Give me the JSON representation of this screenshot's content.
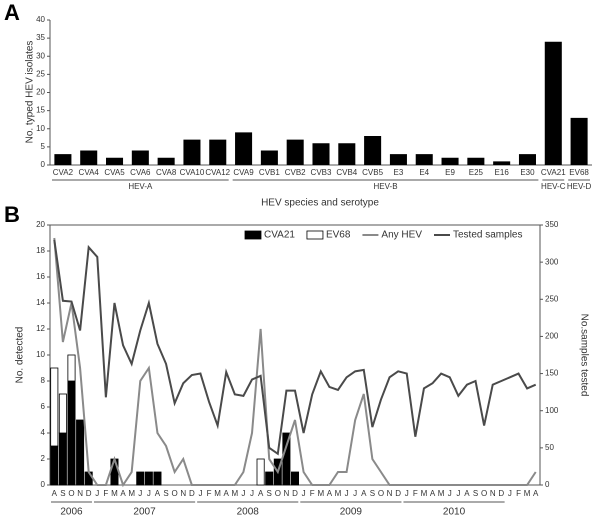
{
  "chart_data": [
    {
      "type": "bar",
      "panel_label": "A",
      "ylabel": "No. typed HEV isolates",
      "xlabel": "HEV species and serotype",
      "categories": [
        "CVA2",
        "CVA4",
        "CVA5",
        "CVA6",
        "CVA8",
        "CVA10",
        "CVA12",
        "CVA9",
        "CVB1",
        "CVB2",
        "CVB3",
        "CVB4",
        "CVB5",
        "E3",
        "E4",
        "E9",
        "E25",
        "E16",
        "E30",
        "CVA21",
        "EV68"
      ],
      "groups": [
        "HEV-A",
        "HEV-A",
        "HEV-A",
        "HEV-A",
        "HEV-A",
        "HEV-A",
        "HEV-A",
        "HEV-B",
        "HEV-B",
        "HEV-B",
        "HEV-B",
        "HEV-B",
        "HEV-B",
        "HEV-B",
        "HEV-B",
        "HEV-B",
        "HEV-B",
        "HEV-B",
        "HEV-B",
        "HEV-C",
        "HEV-D"
      ],
      "values": [
        3,
        4,
        2,
        4,
        2,
        7,
        7,
        9,
        4,
        7,
        6,
        6,
        8,
        3,
        3,
        2,
        2,
        1,
        3,
        34,
        13
      ],
      "color": "#000000",
      "ylim": [
        0,
        40
      ],
      "yticks": [
        0,
        5,
        10,
        15,
        20,
        25,
        30,
        35,
        40
      ]
    },
    {
      "type": "bar_line",
      "panel_label": "B",
      "ylabel": "No. detected",
      "y2label": "No.samples tested",
      "legend": "top-right",
      "stacked": true,
      "categories": [
        "A",
        "S",
        "O",
        "N",
        "D",
        "J",
        "F",
        "M",
        "A",
        "M",
        "J",
        "J",
        "A",
        "S",
        "O",
        "N",
        "D",
        "J",
        "F",
        "M",
        "A",
        "M",
        "J",
        "J",
        "A",
        "S",
        "O",
        "N",
        "D",
        "J",
        "F",
        "M",
        "A",
        "M",
        "J",
        "J",
        "A",
        "S",
        "O",
        "N",
        "D",
        "J",
        "F",
        "M",
        "A",
        "M",
        "J",
        "J",
        "A",
        "S",
        "O",
        "N",
        "D",
        "J",
        "F",
        "M",
        "A"
      ],
      "years": [
        "2006",
        "2006",
        "2006",
        "2006",
        "2006",
        "2007",
        "2007",
        "2007",
        "2007",
        "2007",
        "2007",
        "2007",
        "2007",
        "2007",
        "2007",
        "2007",
        "2007",
        "2008",
        "2008",
        "2008",
        "2008",
        "2008",
        "2008",
        "2008",
        "2008",
        "2008",
        "2008",
        "2008",
        "2008",
        "2009",
        "2009",
        "2009",
        "2009",
        "2009",
        "2009",
        "2009",
        "2009",
        "2009",
        "2009",
        "2009",
        "2009",
        "2010",
        "2010",
        "2010",
        "2010",
        "2010",
        "2010",
        "2010",
        "2010",
        "2010",
        "2010",
        "2010",
        "2010",
        null,
        null,
        null,
        null
      ],
      "series": [
        {
          "name": "CVA21",
          "kind": "bar",
          "color": "#000000",
          "values": [
            3,
            4,
            8,
            5,
            1,
            0,
            0,
            2,
            0,
            0,
            1,
            1,
            1,
            0,
            0,
            0,
            0,
            0,
            0,
            0,
            0,
            0,
            0,
            0,
            0,
            1,
            2,
            4,
            1,
            0,
            0,
            0,
            0,
            0,
            0,
            0,
            0,
            0,
            0,
            0,
            0,
            0,
            0,
            0,
            0,
            0,
            0,
            0,
            0,
            0,
            0,
            0,
            0,
            0,
            0,
            0,
            0
          ]
        },
        {
          "name": "EV68",
          "kind": "bar",
          "color": "#ffffff",
          "values": [
            6,
            3,
            2,
            0,
            0,
            0,
            0,
            0,
            0,
            0,
            0,
            0,
            0,
            0,
            0,
            0,
            0,
            0,
            0,
            0,
            0,
            0,
            0,
            0,
            2,
            0,
            0,
            0,
            0,
            0,
            0,
            0,
            0,
            0,
            0,
            0,
            0,
            0,
            0,
            0,
            0,
            0,
            0,
            0,
            0,
            0,
            0,
            0,
            0,
            0,
            0,
            0,
            0,
            0,
            0,
            0,
            0
          ]
        },
        {
          "name": "Any HEV",
          "kind": "line",
          "color": "#8a8a8a",
          "values": [
            19,
            11,
            14,
            9,
            1,
            0,
            0,
            2,
            0,
            1,
            8,
            9,
            4,
            3,
            1,
            2,
            0,
            0,
            0,
            0,
            0,
            0,
            1,
            4,
            12,
            2,
            1,
            3,
            5,
            1,
            0,
            0,
            0,
            1,
            1,
            5,
            7,
            2,
            1,
            0,
            0,
            0,
            0,
            0,
            0,
            0,
            0,
            0,
            0,
            0,
            0,
            0,
            0,
            0,
            0,
            0,
            1
          ]
        },
        {
          "name": "Tested samples",
          "kind": "line",
          "axis": "y2",
          "color": "#4a4a4a",
          "values": [
            330,
            248,
            247,
            208,
            320,
            307,
            118,
            245,
            188,
            163,
            208,
            245,
            190,
            163,
            110,
            137,
            148,
            150,
            112,
            80,
            152,
            122,
            120,
            142,
            147,
            50,
            42,
            127,
            127,
            70,
            122,
            153,
            132,
            128,
            145,
            153,
            155,
            78,
            115,
            145,
            153,
            150,
            65,
            130,
            137,
            150,
            145,
            120,
            135,
            140,
            80,
            135,
            140,
            145,
            150,
            130,
            135
          ]
        }
      ],
      "ylim": [
        0,
        20
      ],
      "yticks": [
        0,
        2,
        4,
        6,
        8,
        10,
        12,
        14,
        16,
        18,
        20
      ],
      "y2lim": [
        0,
        350
      ],
      "y2ticks": [
        0,
        50,
        100,
        150,
        200,
        250,
        300,
        350
      ]
    }
  ]
}
